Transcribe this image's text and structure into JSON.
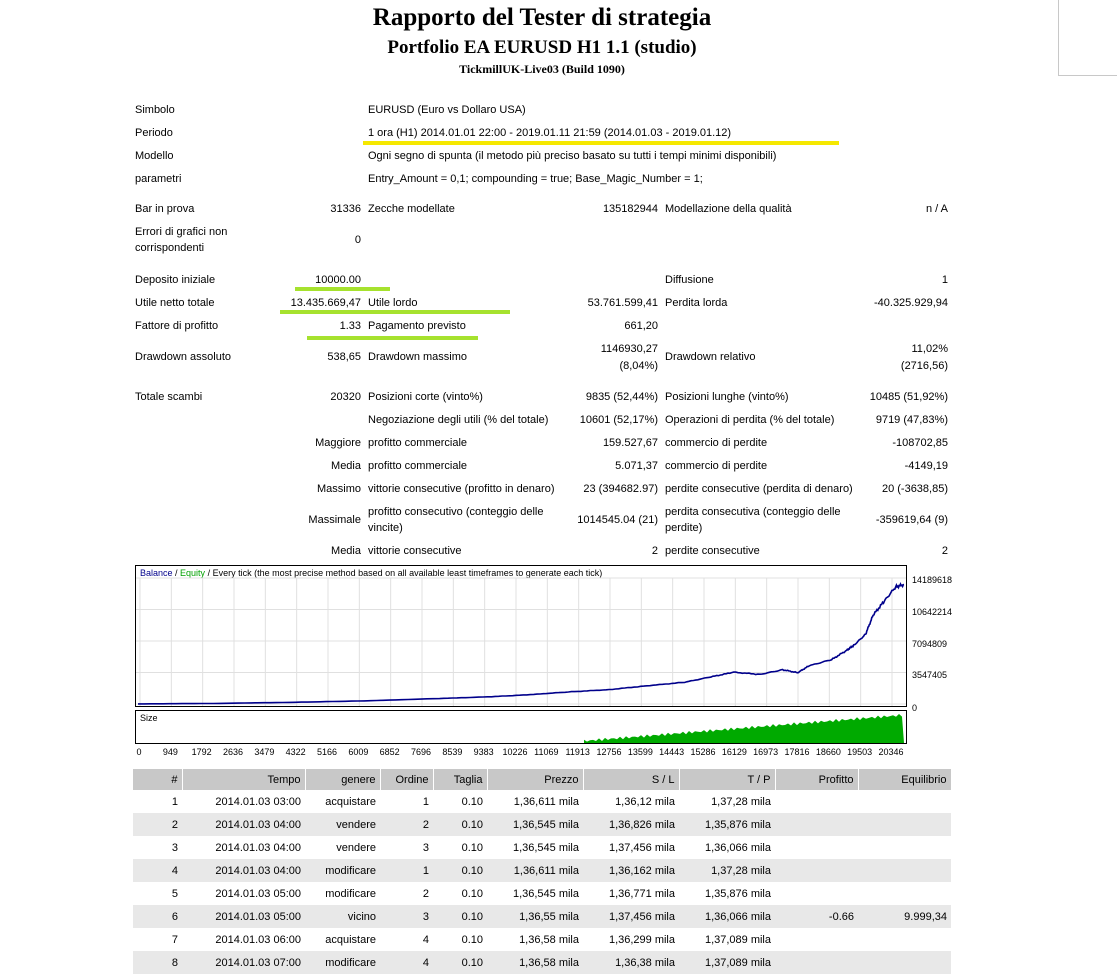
{
  "header": {
    "title": "Rapporto del Tester di strategia",
    "subtitle": "Portfolio EA EURUSD H1 1.1 (studio)",
    "server": "TickmillUK-Live03 (Build 1090)"
  },
  "info": {
    "symbol_label": "Simbolo",
    "symbol_value": "EURUSD (Euro vs Dollaro USA)",
    "period_label": "Periodo",
    "period_value": "1 ora (H1) 2014.01.01 22:00 - 2019.01.11 21:59 (2014.01.03 - 2019.01.12)",
    "model_label": "Modello",
    "model_value": "Ogni segno di spunta (il metodo più preciso basato su tutti i tempi minimi disponibili)",
    "params_label": "parametri",
    "params_value": "Entry_Amount = 0,1; compounding = true; Base_Magic_Number = 1;"
  },
  "stats": {
    "bars_label": "Bar in prova",
    "bars_value": "31336",
    "ticks_label": "Zecche modellate",
    "ticks_value": "135182944",
    "quality_label": "Modellazione della qualità",
    "quality_value": "n / A",
    "errors_label_1": "Errori di grafici non",
    "errors_label_2": "corrispondenti",
    "errors_value": "0",
    "deposit_label": "Deposito iniziale",
    "deposit_value": "10000.00",
    "spread_label": "Diffusione",
    "spread_value": "1",
    "net_label": "Utile netto totale",
    "net_value": "13.435.669,47",
    "gross_profit_label": "Utile lordo",
    "gross_profit_value": "53.761.599,41",
    "gross_loss_label": "Perdita lorda",
    "gross_loss_value": "-40.325.929,94",
    "pf_label": "Fattore di profitto",
    "pf_value": "1.33",
    "expected_label": "Pagamento previsto",
    "expected_value": "661,20",
    "dd_abs_label": "Drawdown assoluto",
    "dd_abs_value": "538,65",
    "dd_max_label": "Drawdown massimo",
    "dd_max_value_1": "1146930,27",
    "dd_max_value_2": "(8,04%)",
    "dd_rel_label": "Drawdown relativo",
    "dd_rel_value_1": "11,02%",
    "dd_rel_value_2": "(2716,56)",
    "trades_label": "Totale scambi",
    "trades_value": "20320",
    "short_label": "Posizioni corte (vinto%)",
    "short_value": "9835 (52,44%)",
    "long_label": "Posizioni lunghe (vinto%)",
    "long_value": "10485 (51,92%)",
    "profit_trades_label": "Negoziazione degli utili (% del totale)",
    "profit_trades_value": "10601 (52,17%)",
    "loss_trades_label": "Operazioni di perdita (% del totale)",
    "loss_trades_value": "9719 (47,83%)",
    "largest_label": "Maggiore",
    "largest_profit_label": "profitto commerciale",
    "largest_profit_value": "159.527,67",
    "largest_loss_label": "commercio di perdite",
    "largest_loss_value": "-108702,85",
    "average_label": "Media",
    "average_profit_label": "profitto commerciale",
    "average_profit_value": "5.071,37",
    "average_loss_label": "commercio di perdite",
    "average_loss_value": "-4149,19",
    "max_label": "Massimo",
    "max_wins_label": "vittorie consecutive (profitto in denaro)",
    "max_wins_value": "23 (394682.97)",
    "max_losses_label": "perdite consecutive (perdita di denaro)",
    "max_losses_value": "20 (-3638,85)",
    "maximal_label": "Massimale",
    "maximal_profit_label_1": "profitto consecutivo (conteggio delle",
    "maximal_profit_label_2": "vincite)",
    "maximal_profit_value": "1014545.04 (21)",
    "maximal_loss_label_1": "perdita consecutiva (conteggio delle",
    "maximal_loss_label_2": "perdite)",
    "maximal_loss_value": "-359619,64 (9)",
    "avg_cons_label": "Media",
    "avg_wins_label": "vittorie consecutive",
    "avg_wins_value": "2",
    "avg_losses_label": "perdite consecutive",
    "avg_losses_value": "2"
  },
  "chart_data": {
    "type": "line",
    "legend": {
      "balance": "Balance",
      "sep": " / ",
      "equity": "Equity",
      "rest": " / Every tick (the most precise method based on all available least timeframes to generate each tick)"
    },
    "colors": {
      "balance": "#00008b",
      "equity": "#008800",
      "size": "#00aa00"
    },
    "y_ticks": [
      "14189618",
      "10642214",
      "7094809",
      "3547405",
      "0"
    ],
    "ylim": [
      0,
      14189618
    ],
    "x_ticks": [
      "0",
      "949",
      "1792",
      "2636",
      "3479",
      "4322",
      "5166",
      "6009",
      "6852",
      "7696",
      "8539",
      "9383",
      "10226",
      "11069",
      "11913",
      "12756",
      "13599",
      "14443",
      "15286",
      "16129",
      "16973",
      "17816",
      "18660",
      "19503",
      "20346"
    ],
    "xlim": [
      0,
      20320
    ],
    "size_label": "Size",
    "series": [
      {
        "name": "Balance",
        "x": [
          0,
          2000,
          4000,
          6000,
          8000,
          9383,
          10500,
          11500,
          12500,
          13500,
          14500,
          15200,
          15800,
          16500,
          17100,
          17500,
          17800,
          18400,
          18800,
          19000,
          19300,
          19500,
          19800,
          20100,
          20320
        ],
        "values": [
          10000,
          60000,
          180000,
          350000,
          620000,
          820000,
          1080000,
          1380000,
          1620000,
          2050000,
          2450000,
          3050000,
          3580000,
          3330000,
          3860000,
          3520000,
          4300000,
          5000000,
          6050000,
          6650000,
          7850000,
          10000000,
          11600000,
          13200000,
          13445669
        ]
      }
    ]
  },
  "table": {
    "headers": [
      "#",
      "Tempo",
      "genere",
      "Ordine",
      "Taglia",
      "Prezzo",
      "S / L",
      "T / P",
      "Profitto",
      "Equilibrio"
    ],
    "rows": [
      [
        "1",
        "2014.01.03 03:00",
        "acquistare",
        "1",
        "0.10",
        "1,36,611 mila",
        "1,36,12 mila",
        "1,37,28 mila",
        "",
        ""
      ],
      [
        "2",
        "2014.01.03 04:00",
        "vendere",
        "2",
        "0.10",
        "1,36,545 mila",
        "1,36,826 mila",
        "1,35,876 mila",
        "",
        ""
      ],
      [
        "3",
        "2014.01.03 04:00",
        "vendere",
        "3",
        "0.10",
        "1,36,545 mila",
        "1,37,456 mila",
        "1,36,066 mila",
        "",
        ""
      ],
      [
        "4",
        "2014.01.03 04:00",
        "modificare",
        "1",
        "0.10",
        "1,36,611 mila",
        "1,36,162 mila",
        "1,37,28 mila",
        "",
        ""
      ],
      [
        "5",
        "2014.01.03 05:00",
        "modificare",
        "2",
        "0.10",
        "1,36,545 mila",
        "1,36,771 mila",
        "1,35,876 mila",
        "",
        ""
      ],
      [
        "6",
        "2014.01.03 05:00",
        "vicino",
        "3",
        "0.10",
        "1,36,55 mila",
        "1,37,456 mila",
        "1,36,066 mila",
        "-0.66",
        "9.999,34"
      ],
      [
        "7",
        "2014.01.03 06:00",
        "acquistare",
        "4",
        "0.10",
        "1,36,58 mila",
        "1,36,299 mila",
        "1,37,089 mila",
        "",
        ""
      ],
      [
        "8",
        "2014.01.03 07:00",
        "modificare",
        "4",
        "0.10",
        "1,36,58 mila",
        "1,36,38 mila",
        "1,37,089 mila",
        "",
        ""
      ]
    ]
  }
}
